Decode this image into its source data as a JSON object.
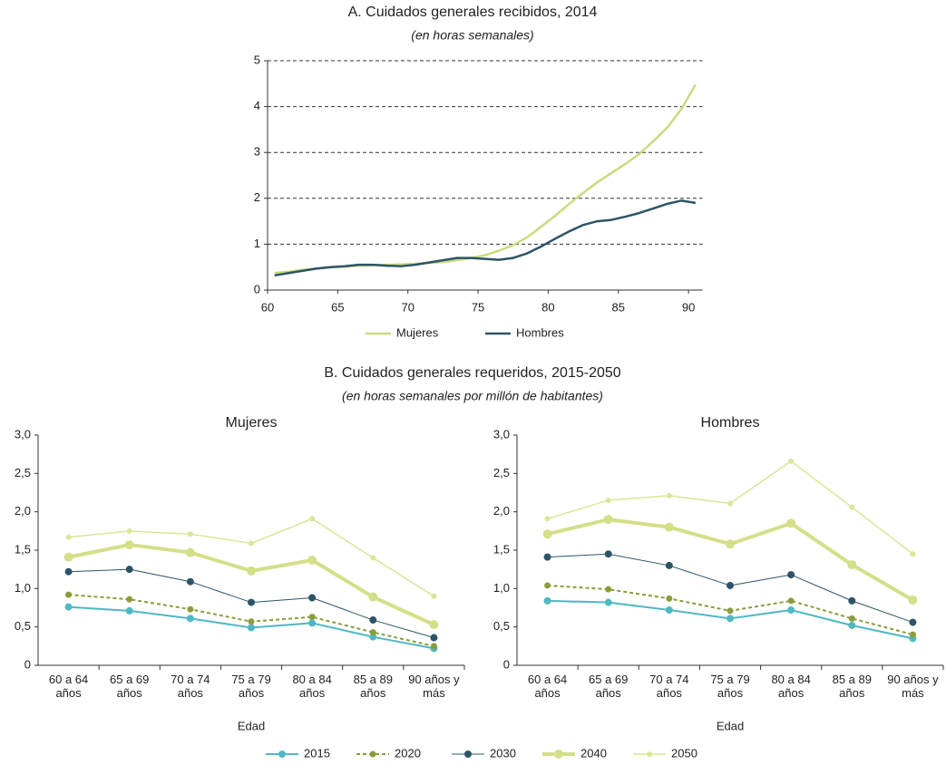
{
  "chart_data": [
    {
      "type": "line",
      "title": "A. Cuidados generales recibidos, 2014",
      "subtitle": "(en horas semanales)",
      "x": [
        60.5,
        61.5,
        62.5,
        63.5,
        64.5,
        65.5,
        66.5,
        67.5,
        68.5,
        69.5,
        70.5,
        71.5,
        72.5,
        73.5,
        74.5,
        75.5,
        76.5,
        77.5,
        78.5,
        79.5,
        80.5,
        81.5,
        82.5,
        83.5,
        84.5,
        85.5,
        86.5,
        87.5,
        88.5,
        89.5,
        90.5
      ],
      "xlim": [
        60,
        91
      ],
      "xticks": [
        60,
        65,
        70,
        75,
        80,
        85,
        90
      ],
      "ylim": [
        0,
        5
      ],
      "yticks": [
        0,
        1,
        2,
        3,
        4,
        5
      ],
      "grid": true,
      "series": [
        {
          "name": "Mujeres",
          "color": "#c9dc7e",
          "line_width": 2.5,
          "values": [
            0.37,
            0.4,
            0.44,
            0.47,
            0.5,
            0.51,
            0.53,
            0.54,
            0.55,
            0.56,
            0.57,
            0.59,
            0.61,
            0.65,
            0.7,
            0.76,
            0.86,
            0.98,
            1.15,
            1.38,
            1.62,
            1.88,
            2.12,
            2.35,
            2.55,
            2.75,
            2.97,
            3.25,
            3.55,
            3.95,
            4.48
          ]
        },
        {
          "name": "Hombres",
          "color": "#2d5466",
          "line_width": 2.5,
          "values": [
            0.32,
            0.37,
            0.42,
            0.47,
            0.5,
            0.52,
            0.55,
            0.55,
            0.53,
            0.52,
            0.55,
            0.6,
            0.65,
            0.7,
            0.7,
            0.68,
            0.66,
            0.7,
            0.8,
            0.95,
            1.12,
            1.28,
            1.42,
            1.5,
            1.53,
            1.6,
            1.68,
            1.78,
            1.88,
            1.95,
            1.9
          ]
        }
      ]
    },
    {
      "type": "line",
      "section_title": "B. Cuidados generales requeridos, 2015-2050",
      "section_subtitle": "(en horas semanales por millón de habitantes)",
      "title": "Mujeres",
      "x_label": "Edad",
      "categories": [
        "60 a 64 años",
        "65 a 69 años",
        "70 a 74 años",
        "75 a 79 años",
        "80 a 84 años",
        "85 a 89 años",
        "90 años y más"
      ],
      "ylim": [
        0,
        3
      ],
      "yticks": [
        0,
        {
          "value": 0.5,
          "label": "0,5"
        },
        {
          "value": 1,
          "label": "1,0"
        },
        {
          "value": 1.5,
          "label": "1,5"
        },
        {
          "value": 2,
          "label": "2,0"
        },
        {
          "value": 2.5,
          "label": "2,5"
        },
        {
          "value": 3,
          "label": "3,0"
        }
      ],
      "series": [
        {
          "name": "2015",
          "color": "#4fb8c2",
          "line_width": 2,
          "marker_size": 4,
          "values": [
            0.76,
            0.71,
            0.61,
            0.49,
            0.55,
            0.37,
            0.22
          ]
        },
        {
          "name": "2020",
          "color": "#8c9c3c",
          "line_width": 2,
          "dash": "4 3",
          "marker_size": 3.5,
          "values": [
            0.92,
            0.86,
            0.73,
            0.57,
            0.63,
            0.43,
            0.25
          ]
        },
        {
          "name": "2030",
          "color": "#2d5466",
          "line_width": 1,
          "marker_size": 4,
          "values": [
            1.22,
            1.25,
            1.09,
            0.82,
            0.88,
            0.59,
            0.36
          ]
        },
        {
          "name": "2040",
          "color": "#d4df88",
          "line_width": 4,
          "marker_size": 5,
          "values": [
            1.41,
            1.57,
            1.47,
            1.23,
            1.37,
            0.89,
            0.53
          ]
        },
        {
          "name": "2050",
          "color": "#dce598",
          "line_width": 1.5,
          "marker_size": 3,
          "values": [
            1.67,
            1.75,
            1.71,
            1.59,
            1.91,
            1.4,
            0.9
          ]
        }
      ]
    },
    {
      "type": "line",
      "title": "Hombres",
      "x_label": "Edad",
      "categories": [
        "60 a 64 años",
        "65 a 69 años",
        "70 a 74 años",
        "75 a 79 años",
        "80 a 84 años",
        "85 a 89 años",
        "90 años y más"
      ],
      "ylim": [
        0,
        3
      ],
      "yticks": [
        0,
        {
          "value": 0.5,
          "label": "0,5"
        },
        {
          "value": 1,
          "label": "1,0"
        },
        {
          "value": 1.5,
          "label": "1,5"
        },
        {
          "value": 2,
          "label": "2,0"
        },
        {
          "value": 2.5,
          "label": "2,5"
        },
        {
          "value": 3,
          "label": "3,0"
        }
      ],
      "series": [
        {
          "name": "2015",
          "color": "#4fb8c2",
          "line_width": 2,
          "marker_size": 4,
          "values": [
            0.84,
            0.82,
            0.72,
            0.61,
            0.72,
            0.52,
            0.35
          ]
        },
        {
          "name": "2020",
          "color": "#8c9c3c",
          "line_width": 2,
          "dash": "4 3",
          "marker_size": 3.5,
          "values": [
            1.04,
            0.99,
            0.87,
            0.71,
            0.84,
            0.61,
            0.4
          ]
        },
        {
          "name": "2030",
          "color": "#2d5466",
          "line_width": 1,
          "marker_size": 4,
          "values": [
            1.41,
            1.45,
            1.3,
            1.04,
            1.18,
            0.84,
            0.56
          ]
        },
        {
          "name": "2040",
          "color": "#d4df88",
          "line_width": 4,
          "marker_size": 5,
          "values": [
            1.71,
            1.9,
            1.8,
            1.58,
            1.85,
            1.31,
            0.85
          ]
        },
        {
          "name": "2050",
          "color": "#dce598",
          "line_width": 1.5,
          "marker_size": 3,
          "values": [
            1.91,
            2.15,
            2.21,
            2.11,
            2.66,
            2.06,
            1.45
          ]
        }
      ]
    }
  ]
}
